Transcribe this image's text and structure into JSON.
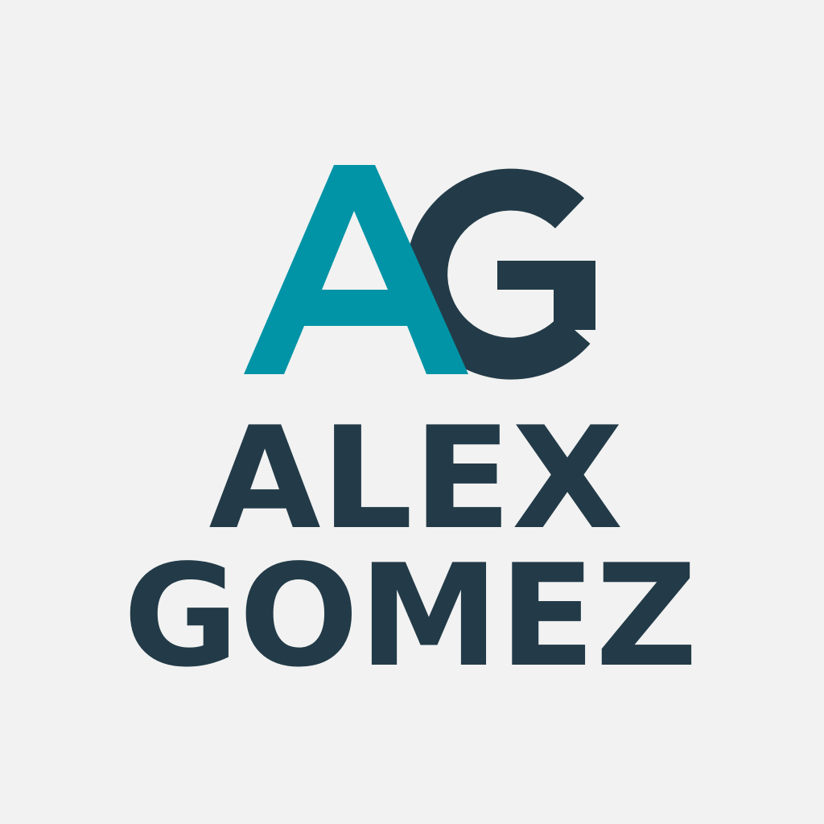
{
  "logo": {
    "monogram_letters": "AG",
    "colors": {
      "background": "#f2f2f2",
      "teal": "#0094a6",
      "navy": "#233b48"
    }
  },
  "wordmark": {
    "line1": "ALEX",
    "line2": "GOMEZ"
  }
}
